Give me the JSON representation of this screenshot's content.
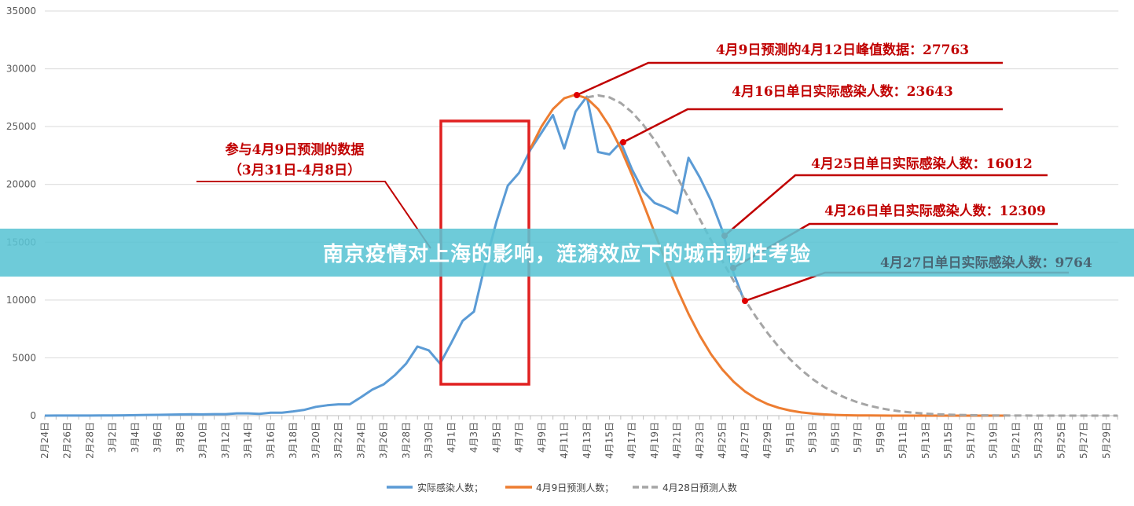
{
  "banner": {
    "title": "南京疫情对上海的影响，涟漪效应下的城市韧性考验"
  },
  "chart_data": {
    "type": "line",
    "title": "",
    "xlabel": "",
    "ylabel": "",
    "ylim": [
      0,
      35000
    ],
    "y_ticks": [
      "0",
      "5000",
      "10000",
      "15000",
      "20000",
      "25000",
      "30000",
      "35000"
    ],
    "x_range": [
      "2月24日",
      "5月30日"
    ],
    "x_tick_labels": [
      "2月24日",
      "2月26日",
      "2月28日",
      "3月2日",
      "3月4日",
      "3月6日",
      "3月8日",
      "3月10日",
      "3月12日",
      "3月14日",
      "3月16日",
      "3月18日",
      "3月20日",
      "3月22日",
      "3月24日",
      "3月26日",
      "3月28日",
      "3月30日",
      "4月1日",
      "4月3日",
      "4月5日",
      "4月7日",
      "4月9日",
      "4月11日",
      "4月13日",
      "4月15日",
      "4月17日",
      "4月19日",
      "4月21日",
      "4月23日",
      "4月25日",
      "4月27日",
      "4月29日",
      "5月1日",
      "5月3日",
      "5月5日",
      "5月7日",
      "5月9日",
      "5月11日",
      "5月13日",
      "5月15日",
      "5月17日",
      "5月19日",
      "5月21日",
      "5月23日",
      "5月25日",
      "5月27日",
      "5月29日"
    ],
    "grid": true,
    "legend_position": "bottom",
    "series": [
      {
        "name": "实际感染人数；",
        "color": "#5b9bd5",
        "style": "solid",
        "start": "2月24日",
        "values": [
          2,
          4,
          6,
          8,
          10,
          15,
          20,
          30,
          40,
          60,
          70,
          90,
          100,
          120,
          110,
          130,
          130,
          200,
          200,
          150,
          260,
          260,
          370,
          500,
          760,
          900,
          980,
          980,
          1600,
          2250,
          2700,
          3500,
          4500,
          5980,
          5650,
          4500,
          6300,
          8200,
          9000,
          13100,
          16800,
          19900,
          21000,
          23000,
          24500,
          26000,
          23100,
          26300,
          27600,
          22800,
          22600,
          23643,
          21300,
          19400,
          18400,
          18000,
          17500,
          22300,
          20600,
          18600,
          16012,
          12309,
          9764
        ]
      },
      {
        "name": "4月9日预测人数；",
        "color": "#ed7d31",
        "style": "solid",
        "start": "4月8日",
        "values": [
          23100,
          25040,
          26520,
          27450,
          27763,
          27450,
          26520,
          25040,
          23100,
          20830,
          18360,
          15820,
          13310,
          10960,
          8810,
          6920,
          5310,
          3990,
          2930,
          2100,
          1470,
          1000,
          670,
          440,
          280,
          180,
          110,
          64,
          37,
          20,
          11,
          6,
          3,
          2,
          1,
          1,
          0,
          0,
          0,
          0,
          0,
          0,
          0
        ]
      },
      {
        "name": "4月28日预测人数",
        "color": "#a5a5a5",
        "style": "dashed",
        "start": "4月13日",
        "values": [
          27530,
          27700,
          27530,
          27040,
          26240,
          25150,
          23830,
          22310,
          20630,
          18840,
          17000,
          15170,
          13380,
          11650,
          10010,
          8510,
          7150,
          5940,
          4870,
          3950,
          3150,
          2490,
          1950,
          1500,
          1140,
          860,
          640,
          470,
          340,
          250,
          180,
          120,
          85,
          58,
          39,
          26,
          17,
          11,
          7,
          5,
          3,
          2,
          1,
          1,
          1,
          0,
          0,
          0
        ]
      }
    ],
    "highlight_box": {
      "from": "3月31日",
      "to": "4月8日",
      "color": "#e02020"
    },
    "annotations": [
      {
        "line1": "参与4月9日预测的数据",
        "line2": "（3月31日-4月8日）"
      },
      {
        "text": "4月9日预测的4月12日峰值数据：27763",
        "date": "4月12日",
        "value": 27763
      },
      {
        "text": "4月16日单日实际感染人数：23643",
        "date": "4月16日",
        "value": 23643
      },
      {
        "text": "4月25日单日实际感染人数：16012",
        "date": "4月25日",
        "value": 16012
      },
      {
        "text": "4月26日单日实际感染人数：12309",
        "date": "4月26日",
        "value": 12309
      },
      {
        "text": "4月27日单日实际感染人数：9764",
        "date": "4月27日",
        "value": 9764
      }
    ],
    "annotation_color": "#c00000"
  }
}
